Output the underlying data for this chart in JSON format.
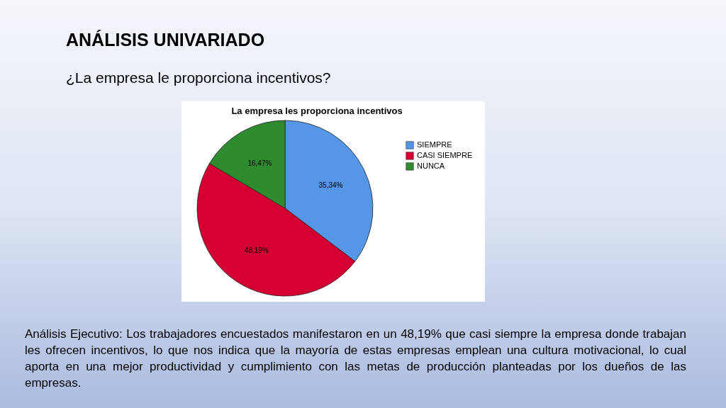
{
  "chart_data": {
    "type": "pie",
    "title": "La empresa les proporciona incentivos",
    "categories": [
      "SIEMPRE",
      "CASI SIEMPRE",
      "NUNCA"
    ],
    "values": [
      35.34,
      48.19,
      16.47
    ],
    "colors": [
      "#5596e6",
      "#d50032",
      "#2e8b2e"
    ],
    "value_labels": [
      "35,34%",
      "48,19%",
      "16,47%"
    ],
    "legend": "top right",
    "annotations": [
      "ANÁLISIS UNIVARIADO",
      "¿La empresa le proporciona incentivos?",
      "Análisis Ejecutivo: Los trabajadores encuestados manifestaron en un 48,19% que casi siempre la empresa donde trabajan les ofrecen incentivos, lo que nos indica que la mayoría de estas empresas emplean una cultura motivacional, lo cual aporta en una mejor productividad y cumplimiento con las metas de producción planteadas por los dueños de las empresas."
    ]
  }
}
